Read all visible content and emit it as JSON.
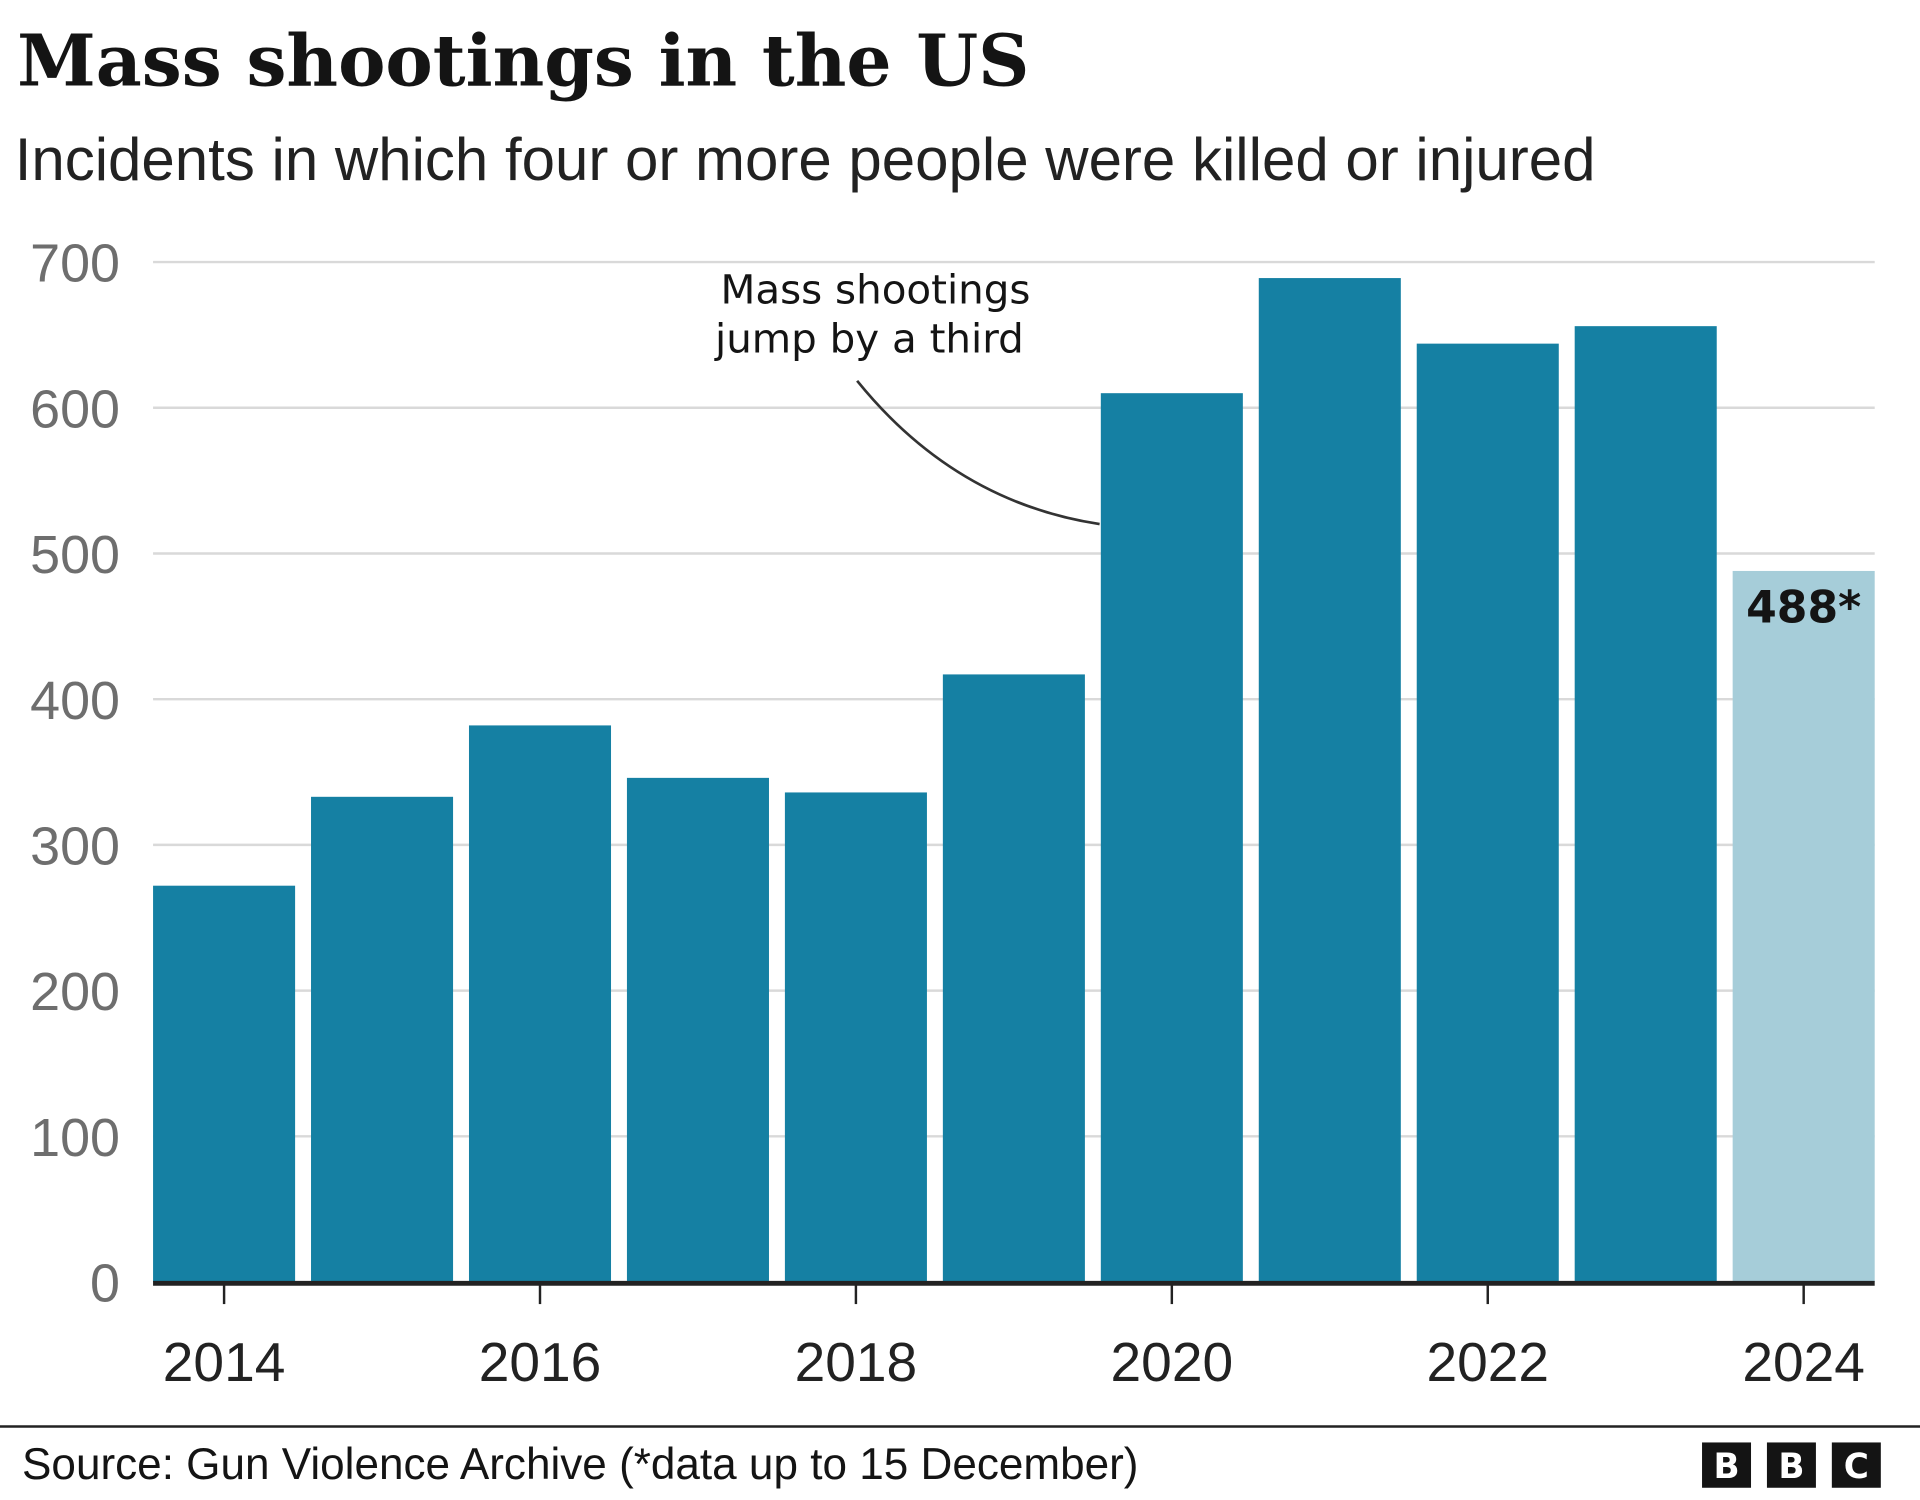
{
  "chart_data": {
    "type": "bar",
    "title": "Mass shootings in the US",
    "subtitle": "Incidents in which four or more people were killed or injured",
    "categories": [
      "2014",
      "2015",
      "2016",
      "2017",
      "2018",
      "2019",
      "2020",
      "2021",
      "2022",
      "2023",
      "2024"
    ],
    "values": [
      272,
      333,
      382,
      346,
      336,
      417,
      610,
      689,
      644,
      656,
      488
    ],
    "x_tick_labels": [
      "2014",
      "2016",
      "2018",
      "2020",
      "2022",
      "2024"
    ],
    "y_tick_labels": [
      "0",
      "100",
      "200",
      "300",
      "400",
      "500",
      "600",
      "700"
    ],
    "ylim": [
      0,
      700
    ],
    "grid": true,
    "xlabel": "",
    "ylabel": "",
    "colors": {
      "bar": "#1580a3",
      "highlight_bar": "#a6cdd9",
      "grid": "#d9d9d9",
      "axis": "#222222"
    },
    "data_label": {
      "category": "2024",
      "text": "488*"
    },
    "annotation": {
      "lines": [
        "Mass shootings",
        "jump by a third"
      ],
      "target": "2020"
    },
    "source": "Source: Gun Violence Archive (*data up to 15 December)",
    "logo": "BBC"
  }
}
